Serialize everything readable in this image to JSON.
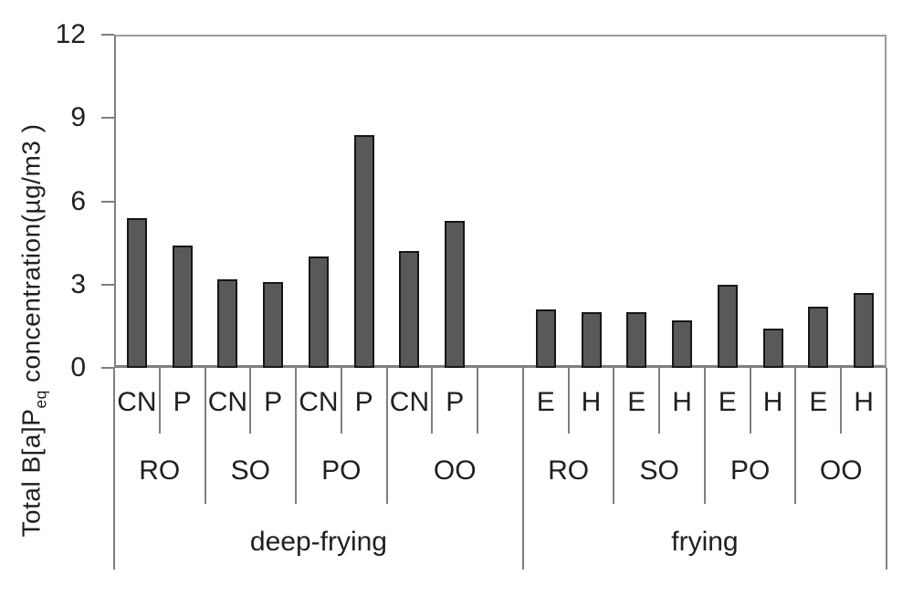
{
  "axis_title": {
    "prefix": "Total B[a]P",
    "subscript": "eq",
    "suffix": " concentration(µg/m3 )"
  },
  "chart_data": {
    "type": "bar",
    "title": "",
    "xlabel": "",
    "ylabel": "Total B[a]P_eq concentration(µg/m3 )",
    "ylim": [
      0,
      12
    ],
    "yticks": [
      0,
      3,
      6,
      9,
      12
    ],
    "grid": false,
    "legend": "none",
    "bar_color": "#595959",
    "bar_border_color": "#161616",
    "axis_color": "#7f7f7f",
    "plot_border_color": "#9d9d9d",
    "groups": [
      {
        "process": "deep-frying",
        "oils": [
          {
            "oil": "RO",
            "bars": [
              {
                "label": "CN",
                "value": 5.4
              },
              {
                "label": "P",
                "value": 4.4
              }
            ]
          },
          {
            "oil": "SO",
            "bars": [
              {
                "label": "CN",
                "value": 3.2
              },
              {
                "label": "P",
                "value": 3.1
              }
            ]
          },
          {
            "oil": "PO",
            "bars": [
              {
                "label": "CN",
                "value": 4.0
              },
              {
                "label": "P",
                "value": 8.4
              }
            ]
          },
          {
            "oil": "OO",
            "bars": [
              {
                "label": "CN",
                "value": 4.2
              },
              {
                "label": "P",
                "value": 5.3
              }
            ]
          }
        ]
      },
      {
        "process": "frying",
        "oils": [
          {
            "oil": "RO",
            "bars": [
              {
                "label": "E",
                "value": 2.1
              },
              {
                "label": "H",
                "value": 2.0
              }
            ]
          },
          {
            "oil": "SO",
            "bars": [
              {
                "label": "E",
                "value": 2.0
              },
              {
                "label": "H",
                "value": 1.7
              }
            ]
          },
          {
            "oil": "PO",
            "bars": [
              {
                "label": "E",
                "value": 3.0
              },
              {
                "label": "H",
                "value": 1.4
              }
            ]
          },
          {
            "oil": "OO",
            "bars": [
              {
                "label": "E",
                "value": 2.2
              },
              {
                "label": "H",
                "value": 2.7
              }
            ]
          }
        ]
      }
    ]
  }
}
